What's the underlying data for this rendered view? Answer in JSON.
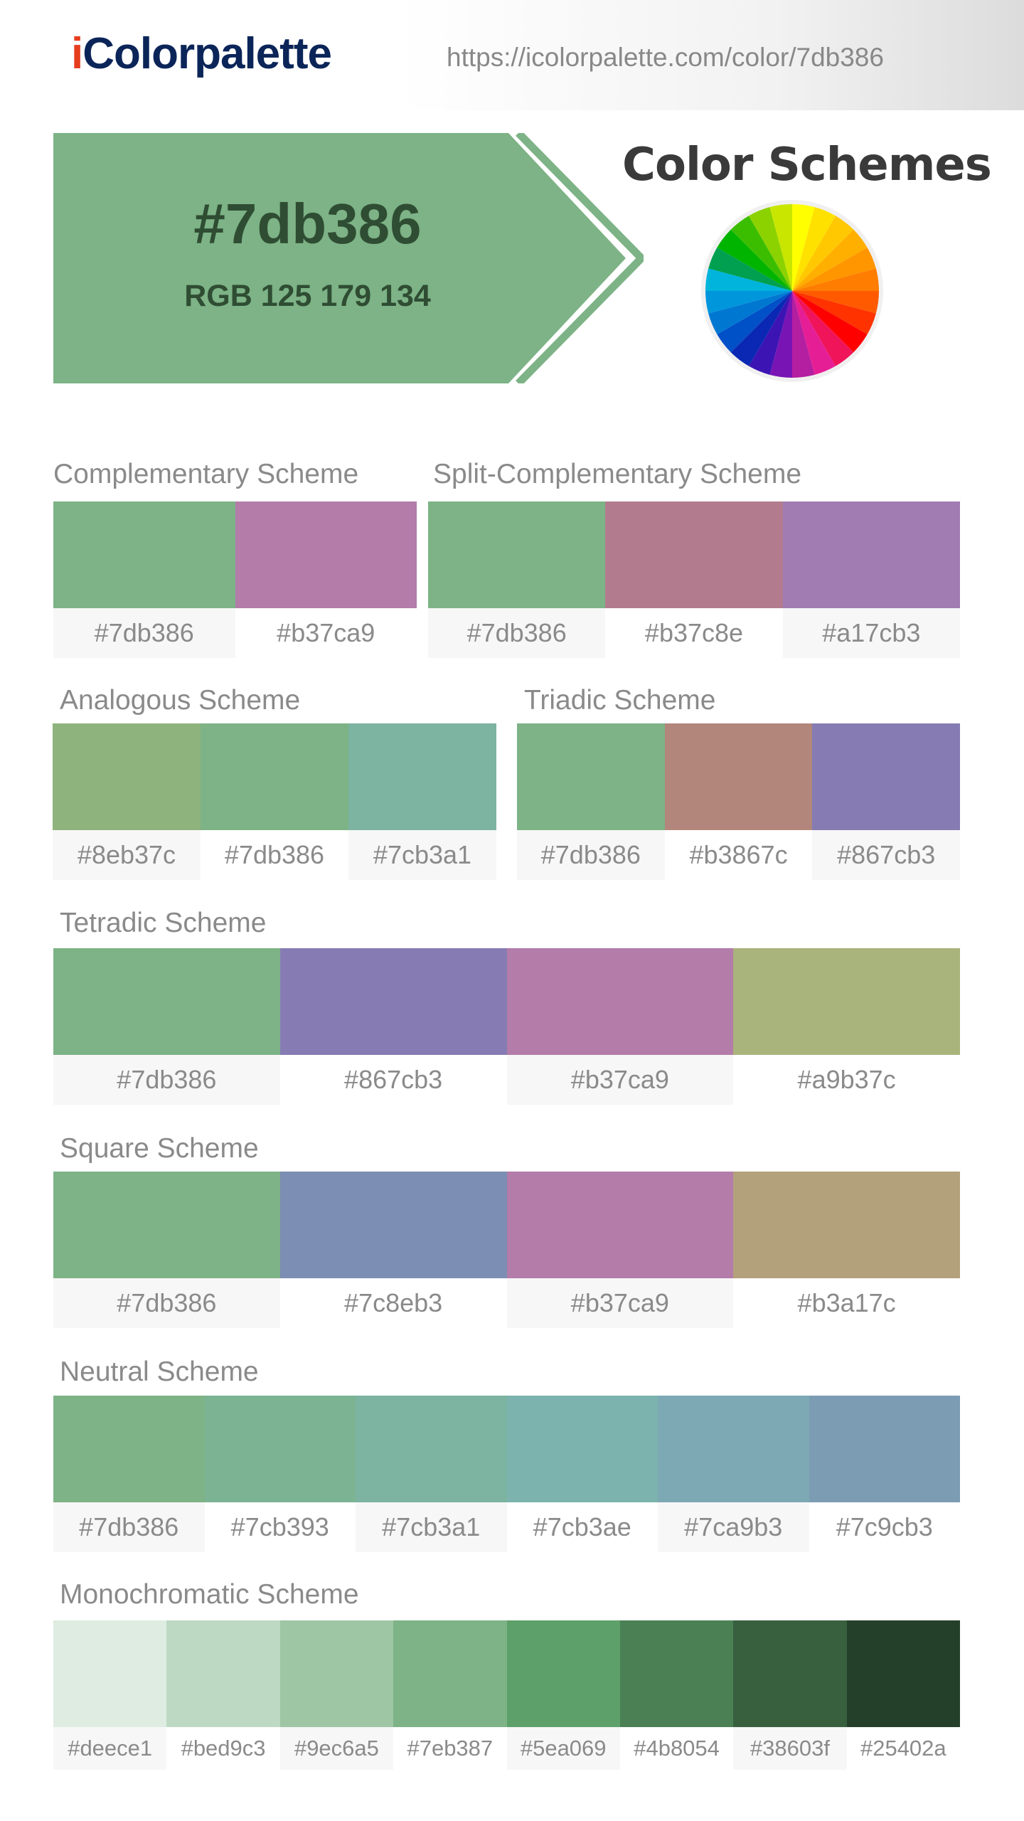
{
  "header": {
    "logo_i": "i",
    "logo_rest": "Colorpalette",
    "url": "https://icolorpalette.com/color/7db386"
  },
  "hero": {
    "hex": "#7db386",
    "rgb": "RGB 125 179 134",
    "color": "#7db386",
    "title": "Color Schemes"
  },
  "schemes": {
    "complementary": {
      "title": "Complementary Scheme",
      "colors": [
        "#7db386",
        "#b37ca9"
      ]
    },
    "split": {
      "title": "Split-Complementary Scheme",
      "colors": [
        "#7db386",
        "#b37c8e",
        "#a17cb3"
      ]
    },
    "analogous": {
      "title": "Analogous Scheme",
      "colors": [
        "#8eb37c",
        "#7db386",
        "#7cb3a1"
      ]
    },
    "triadic": {
      "title": "Triadic Scheme",
      "colors": [
        "#7db386",
        "#b3867c",
        "#867cb3"
      ]
    },
    "tetradic": {
      "title": "Tetradic Scheme",
      "colors": [
        "#7db386",
        "#867cb3",
        "#b37ca9",
        "#a9b37c"
      ]
    },
    "square": {
      "title": "Square Scheme",
      "colors": [
        "#7db386",
        "#7c8eb3",
        "#b37ca9",
        "#b3a17c"
      ]
    },
    "neutral": {
      "title": "Neutral Scheme",
      "colors": [
        "#7db386",
        "#7cb393",
        "#7cb3a1",
        "#7cb3ae",
        "#7ca9b3",
        "#7c9cb3"
      ]
    },
    "monochromatic": {
      "title": "Monochromatic Scheme",
      "colors": [
        "#deece1",
        "#bed9c3",
        "#9ec6a5",
        "#7eb387",
        "#5ea069",
        "#4b8054",
        "#38603f",
        "#25402a"
      ]
    }
  },
  "wheel_colors": [
    "#ffff00",
    "#ffe100",
    "#ffc800",
    "#ffaf00",
    "#ff9600",
    "#ff7d00",
    "#ff5a00",
    "#ff3200",
    "#ff0000",
    "#f0145a",
    "#e61e96",
    "#b41ea0",
    "#7814b4",
    "#3c14b4",
    "#0a28b4",
    "#0050c8",
    "#0078d2",
    "#0096dc",
    "#00b4dc",
    "#00a050",
    "#00b400",
    "#3cbe00",
    "#8cd200",
    "#c8e600"
  ]
}
